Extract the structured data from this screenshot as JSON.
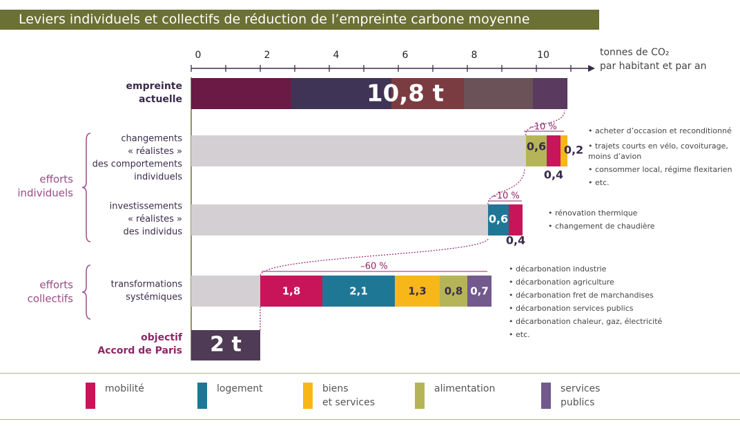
{
  "title": "Leviers individuels et collectifs de réduction de l’empreinte carbone moyenne",
  "axis": {
    "ticks": [
      "0",
      "2",
      "4",
      "6",
      "8",
      "10"
    ],
    "unit_line1": "tonnes de CO₂",
    "unit_line2": "par habitant et par an"
  },
  "colors": {
    "mobilite": "#c8155a",
    "logement": "#1f7796",
    "biens": "#f7b718",
    "alimentation": "#b5b557",
    "services": "#725a8c",
    "grey_bar": "#d4cfd2",
    "axis_line": "#3a2a4a",
    "accent_text": "#8e2567",
    "group_text": "#9a4a86",
    "divider": "#b5b38f",
    "title_band": "#6b7034"
  },
  "rows": {
    "current": {
      "label_line1": "empreinte",
      "label_line2": "actuelle",
      "value_label": "10,8 t"
    },
    "behaviour": {
      "label_lines": [
        "changements",
        "« réalistes »",
        "des comportements",
        "individuels"
      ],
      "reduction_label": "–10 %"
    },
    "investment": {
      "label_lines": [
        "investissements",
        "« réalistes »",
        "des individus"
      ],
      "reduction_label": "–10 %"
    },
    "systemic": {
      "label_lines": [
        "transformations",
        "systémiques"
      ],
      "reduction_label": "–60 %"
    },
    "target": {
      "label_line1": "objectif",
      "label_line2": "Accord de Paris",
      "value_label": "2 t"
    }
  },
  "groups": {
    "individual": {
      "line1": "efforts",
      "line2": "individuels"
    },
    "collective": {
      "line1": "efforts",
      "line2": "collectifs"
    }
  },
  "notes": {
    "behaviour": [
      "• acheter d’occasion et reconditionné",
      "• trajets courts en vélo, covoiturage,",
      "moins d’avion",
      "• consommer local, régime flexitarien",
      "• etc."
    ],
    "investment": [
      "• rénovation thermique",
      "• changement de chaudière"
    ],
    "systemic": [
      "• décarbonation industrie",
      "• décarbonation agriculture",
      "• décarbonation fret de marchandises",
      "• décarbonation services publics",
      "• décarbonation chaleur, gaz, électricité",
      "• etc."
    ]
  },
  "legend": [
    {
      "key": "mobilite",
      "label": "mobilité"
    },
    {
      "key": "logement",
      "label": "logement"
    },
    {
      "key": "biens",
      "label": "biens\net services"
    },
    {
      "key": "alimentation",
      "label": "alimentation"
    },
    {
      "key": "services",
      "label": "services\npublics"
    }
  ],
  "chart_data": {
    "type": "bar",
    "xlim": [
      0,
      11
    ],
    "x_ticks": [
      0,
      2,
      4,
      6,
      8,
      10
    ],
    "current_footprint": {
      "total": 10.8,
      "segments": [
        {
          "color": "#6a1a45",
          "value": 2.9
        },
        {
          "color": "#3f3455",
          "value": 2.9
        },
        {
          "color": "#7a3c40",
          "value": 2.1
        },
        {
          "color": "#6b5158",
          "value": 2.0
        },
        {
          "color": "#5a3a5e",
          "value": 1.0
        }
      ]
    },
    "behaviour_changes": {
      "remaining": 9.7,
      "segments": [
        {
          "category": "alimentation",
          "value": 0.6,
          "label": "0,6"
        },
        {
          "category": "mobilite",
          "value": 0.4,
          "label": "0,4"
        },
        {
          "category": "biens",
          "value": 0.2,
          "label": "0,2"
        }
      ]
    },
    "individual_investments": {
      "remaining": 8.6,
      "segments": [
        {
          "category": "logement",
          "value": 0.6,
          "label": "0,6"
        },
        {
          "category": "mobilite",
          "value": 0.4,
          "label": "0,4"
        }
      ]
    },
    "systemic_transformations": {
      "remaining": 2.0,
      "segments": [
        {
          "category": "mobilite",
          "value": 1.8,
          "label": "1,8"
        },
        {
          "category": "logement",
          "value": 2.1,
          "label": "2,1"
        },
        {
          "category": "biens",
          "value": 1.3,
          "label": "1,3"
        },
        {
          "category": "alimentation",
          "value": 0.8,
          "label": "0,8"
        },
        {
          "category": "services",
          "value": 0.7,
          "label": "0,7"
        }
      ]
    },
    "target": {
      "value": 2.0
    }
  }
}
